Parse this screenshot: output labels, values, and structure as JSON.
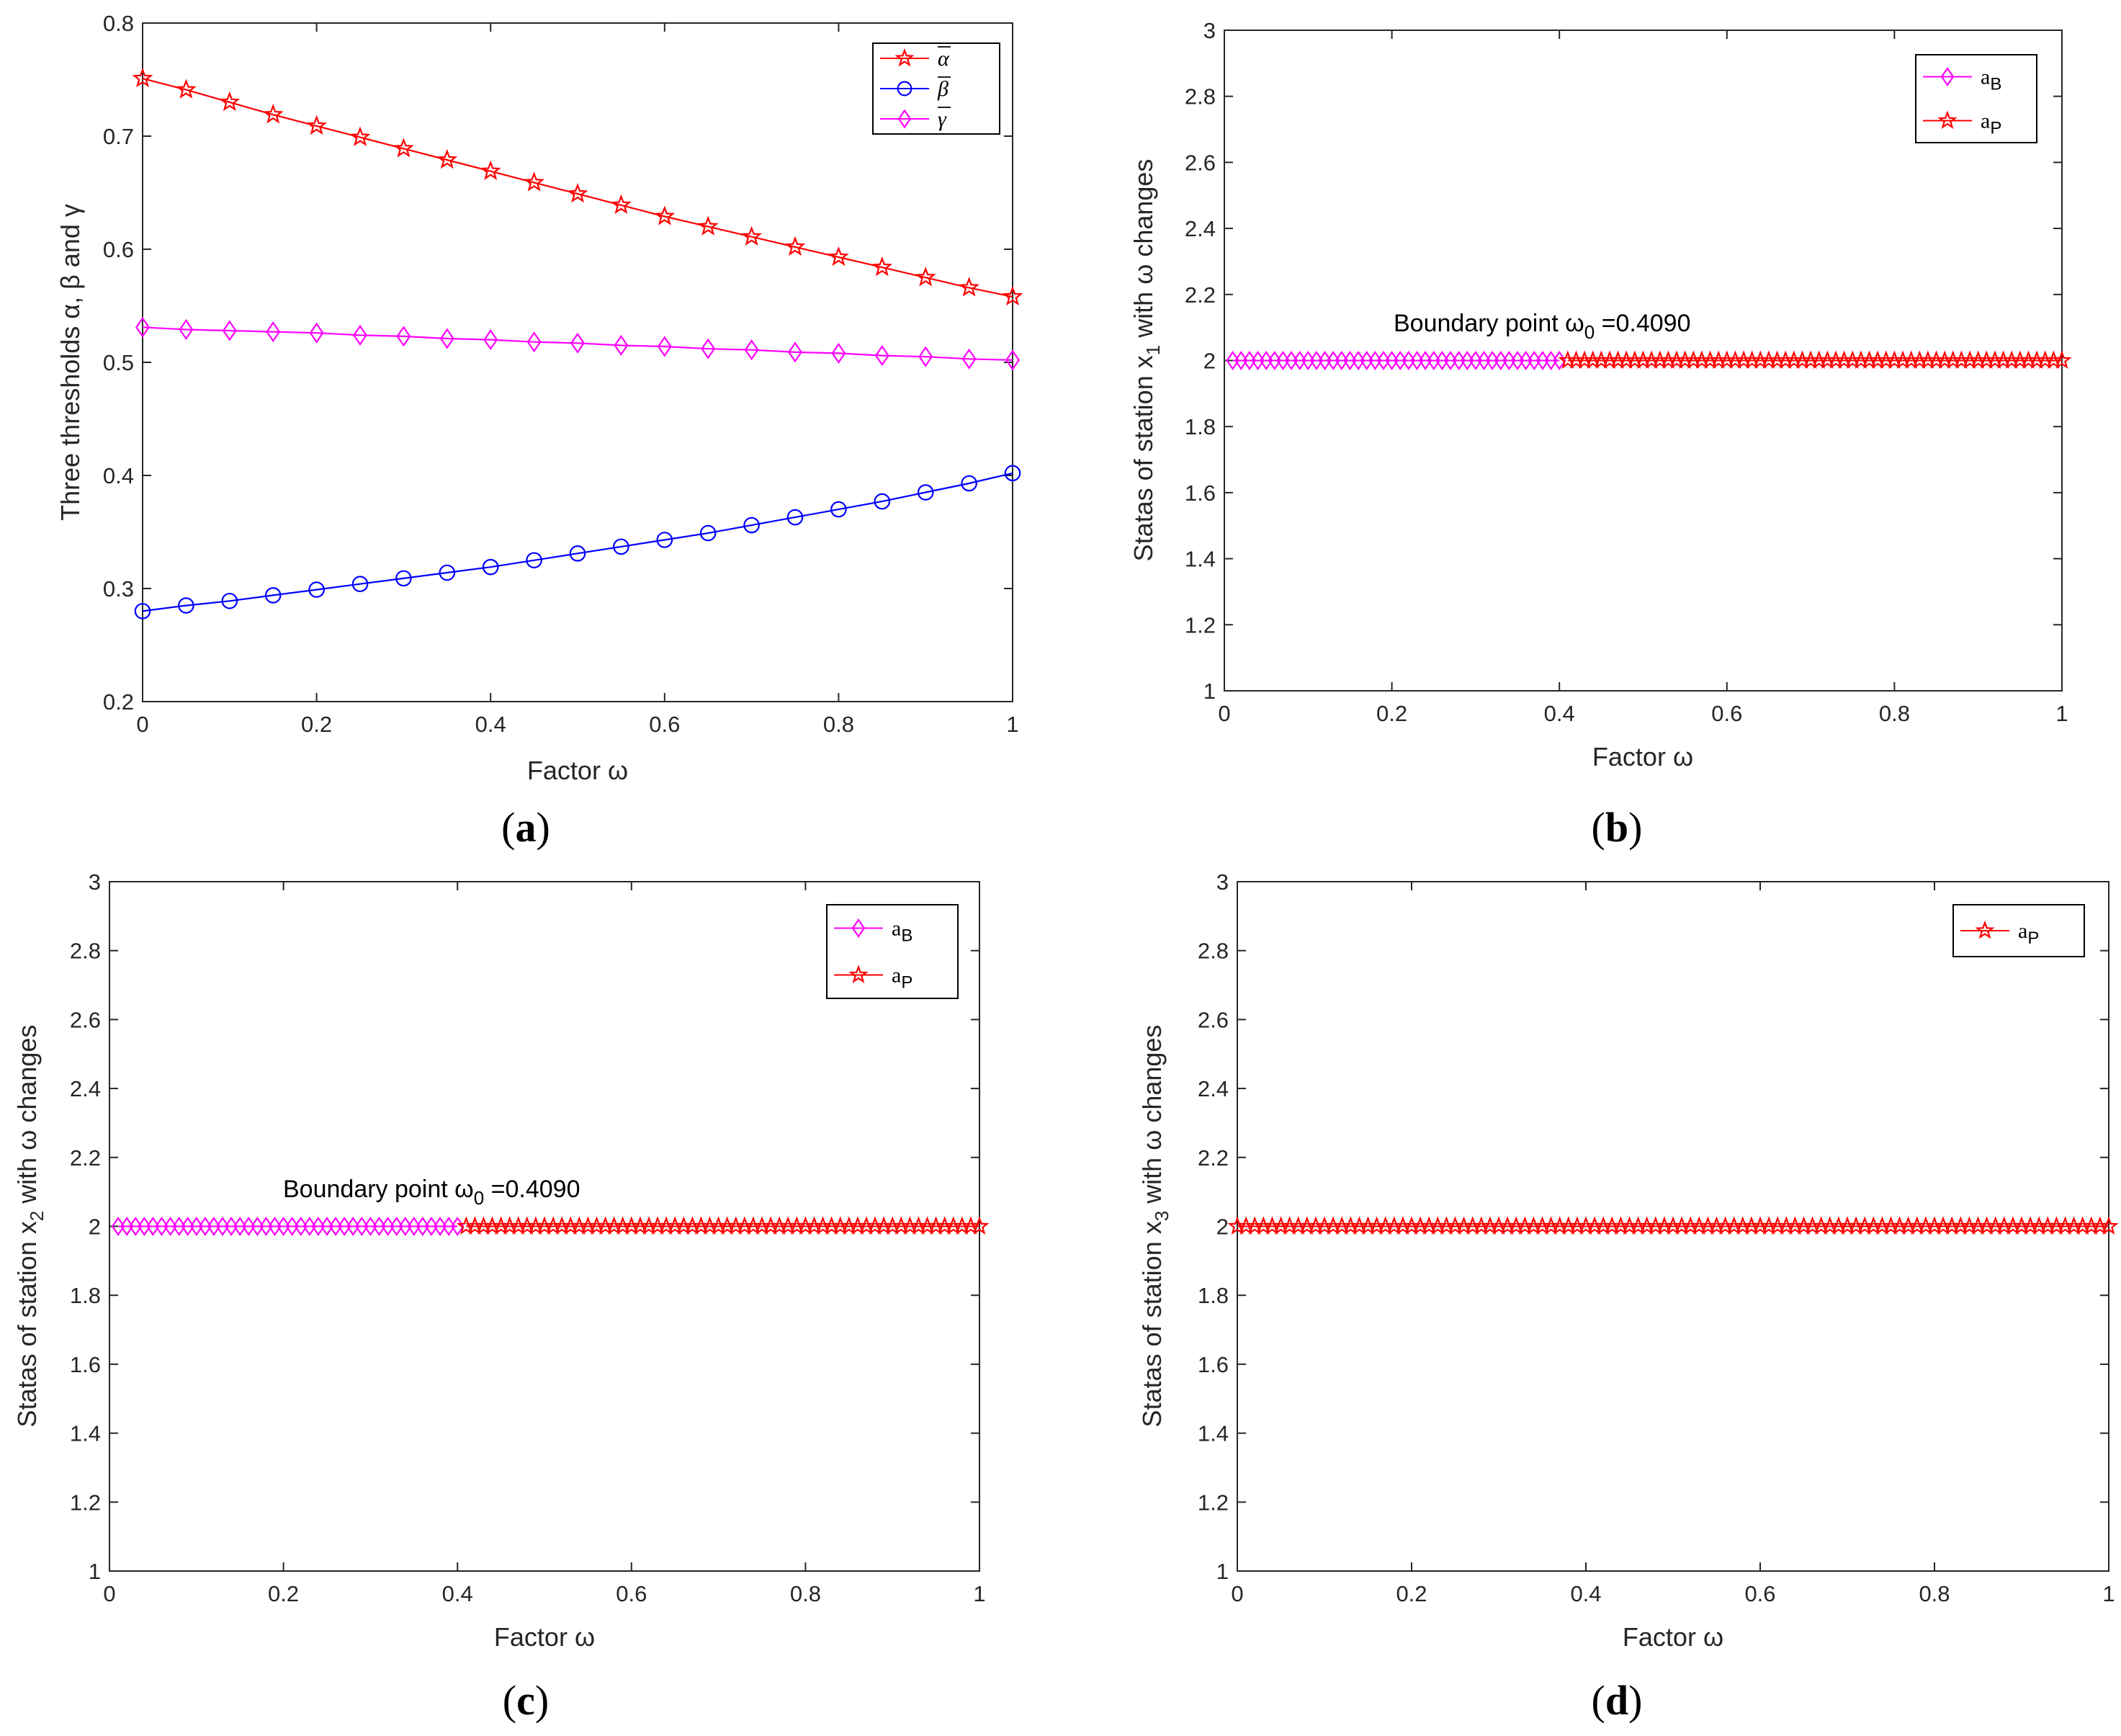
{
  "colors": {
    "alpha": "#ff0000",
    "beta": "#0000ff",
    "gamma": "#ff00ff",
    "axis": "#262626"
  },
  "chart_data": [
    {
      "panel": "(a)",
      "type": "line",
      "xlabel": "Factor ω",
      "ylabel": "Three thresholds α, β and γ",
      "xlim": [
        0,
        1
      ],
      "ylim": [
        0.2,
        0.8
      ],
      "xticks": [
        "0",
        "0.2",
        "0.4",
        "0.6",
        "0.8",
        "1"
      ],
      "yticks": [
        "0.2",
        "0.3",
        "0.4",
        "0.5",
        "0.6",
        "0.7",
        "0.8"
      ],
      "x": [
        0,
        0.05,
        0.1,
        0.15,
        0.2,
        0.25,
        0.3,
        0.35,
        0.4,
        0.45,
        0.5,
        0.55,
        0.6,
        0.65,
        0.7,
        0.75,
        0.8,
        0.85,
        0.9,
        0.95,
        1
      ],
      "series": [
        {
          "name": "ᾱ",
          "marker": "star",
          "color": "#ff0000",
          "values": [
            0.751,
            0.741,
            0.73,
            0.719,
            0.709,
            0.699,
            0.689,
            0.679,
            0.669,
            0.659,
            0.649,
            0.639,
            0.629,
            0.62,
            0.611,
            0.602,
            0.593,
            0.584,
            0.575,
            0.566,
            0.558
          ]
        },
        {
          "name": "β̄",
          "marker": "circle",
          "color": "#0000ff",
          "values": [
            0.28,
            0.285,
            0.289,
            0.294,
            0.299,
            0.304,
            0.309,
            0.314,
            0.319,
            0.325,
            0.331,
            0.337,
            0.343,
            0.349,
            0.356,
            0.363,
            0.37,
            0.377,
            0.385,
            0.393,
            0.402
          ]
        },
        {
          "name": "γ̄",
          "marker": "diamond",
          "color": "#ff00ff",
          "values": [
            0.531,
            0.529,
            0.528,
            0.527,
            0.526,
            0.524,
            0.523,
            0.521,
            0.52,
            0.518,
            0.517,
            0.515,
            0.514,
            0.512,
            0.511,
            0.509,
            0.508,
            0.506,
            0.505,
            0.503,
            0.502
          ]
        }
      ],
      "legend": "top-right"
    },
    {
      "panel": "(b)",
      "type": "scatter",
      "xlabel": "Factor ω",
      "ylabel": "Statas of station x1 with ω changes",
      "ylabel_main": "Statas of station x",
      "ylabel_sub": "1",
      "ylabel_rest": " with ω changes",
      "xlim": [
        0,
        1
      ],
      "ylim": [
        1,
        3
      ],
      "xticks": [
        "0",
        "0.2",
        "0.4",
        "0.6",
        "0.8",
        "1"
      ],
      "yticks": [
        "1",
        "1.2",
        "1.4",
        "1.6",
        "1.8",
        "2",
        "2.2",
        "2.4",
        "2.6",
        "2.8",
        "3"
      ],
      "series": [
        {
          "name": "aB",
          "marker": "diamond",
          "color": "#ff00ff",
          "x_range": [
            0.01,
            0.4
          ],
          "step": 0.01,
          "y": 2
        },
        {
          "name": "aP",
          "marker": "star",
          "color": "#ff0000",
          "x_range": [
            0.41,
            1.0
          ],
          "step": 0.01,
          "y": 2
        }
      ],
      "annotation": {
        "text_main": "Boundary point ω",
        "text_sub": "0",
        "text_rest": " =0.4090",
        "x": 0.2,
        "y": 2.12
      },
      "legend": "top-right"
    },
    {
      "panel": "(c)",
      "type": "scatter",
      "xlabel": "Factor ω",
      "ylabel": "Statas of station x2 with ω changes",
      "ylabel_main": "Statas of station x",
      "ylabel_sub": "2",
      "ylabel_rest": " with ω changes",
      "xlim": [
        0,
        1
      ],
      "ylim": [
        1,
        3
      ],
      "xticks": [
        "0",
        "0.2",
        "0.4",
        "0.6",
        "0.8",
        "1"
      ],
      "yticks": [
        "1",
        "1.2",
        "1.4",
        "1.6",
        "1.8",
        "2",
        "2.2",
        "2.4",
        "2.6",
        "2.8",
        "3"
      ],
      "series": [
        {
          "name": "aB",
          "marker": "diamond",
          "color": "#ff00ff",
          "x_range": [
            0.01,
            0.4
          ],
          "step": 0.01,
          "y": 2
        },
        {
          "name": "aP",
          "marker": "star",
          "color": "#ff0000",
          "x_range": [
            0.41,
            1.0
          ],
          "step": 0.01,
          "y": 2
        }
      ],
      "annotation": {
        "text_main": "Boundary point ω",
        "text_sub": "0",
        "text_rest": " =0.4090",
        "x": 0.2,
        "y": 2.12
      },
      "legend": "top-right"
    },
    {
      "panel": "(d)",
      "type": "scatter",
      "xlabel": "Factor ω",
      "ylabel": "Statas of station x3 with ω changes",
      "ylabel_main": "Statas of station x",
      "ylabel_sub": "3",
      "ylabel_rest": " with ω changes",
      "xlim": [
        0,
        1
      ],
      "ylim": [
        1,
        3
      ],
      "xticks": [
        "0",
        "0.2",
        "0.4",
        "0.6",
        "0.8",
        "1"
      ],
      "yticks": [
        "1",
        "1.2",
        "1.4",
        "1.6",
        "1.8",
        "2",
        "2.2",
        "2.4",
        "2.6",
        "2.8",
        "3"
      ],
      "series": [
        {
          "name": "aP",
          "marker": "star",
          "color": "#ff0000",
          "x_range": [
            0.0,
            1.0
          ],
          "step": 0.01,
          "y": 2
        }
      ],
      "legend": "top-right"
    }
  ],
  "legend_entries": {
    "a": [
      {
        "base": "α",
        "accent": "bar"
      },
      {
        "base": "β",
        "accent": "bar"
      },
      {
        "base": "γ",
        "accent": "bar"
      }
    ],
    "bc": [
      {
        "base": "a",
        "sub": "B"
      },
      {
        "base": "a",
        "sub": "P"
      }
    ],
    "d": [
      {
        "base": "a",
        "sub": "P"
      }
    ]
  },
  "panel_labels": [
    "a",
    "b",
    "c",
    "d"
  ]
}
